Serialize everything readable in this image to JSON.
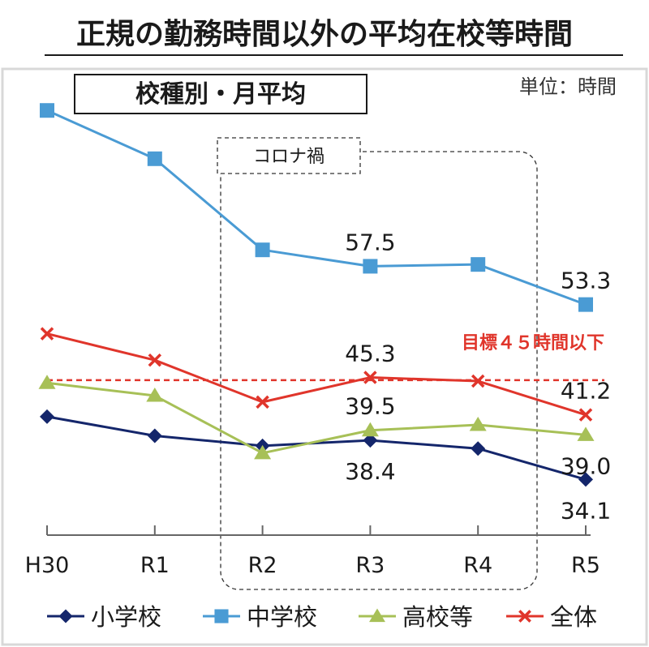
{
  "title": "正規の勤務時間以外の平均在校等時間",
  "subtitle": "校種別・月平均",
  "unit_label": "単位：時間",
  "covid_label": "コロナ禍",
  "target_label": "目標４５時間以下",
  "colors": {
    "title": "#1a1a1a",
    "elementary": "#14266b",
    "junior_high": "#4a9bd4",
    "high_school": "#a7c057",
    "overall": "#e0352b",
    "target": "#e0352b",
    "axis": "#666666",
    "frame": "#d8d8d8",
    "covid_box": "#333333"
  },
  "chart_data": {
    "type": "line",
    "categories": [
      "H30",
      "R1",
      "R2",
      "R3",
      "R4",
      "R5"
    ],
    "ylim": [
      28,
      78
    ],
    "grid": false,
    "legend_position": "bottom",
    "target_value": 45,
    "covid_range": [
      "R2",
      "R4"
    ],
    "series": [
      {
        "key": "elementary",
        "name": "小学校",
        "marker": "diamond",
        "values": [
          41.0,
          38.9,
          37.8,
          38.4,
          37.5,
          34.1
        ]
      },
      {
        "key": "junior_high",
        "name": "中学校",
        "marker": "square",
        "values": [
          74.6,
          69.3,
          59.3,
          57.5,
          57.7,
          53.3
        ]
      },
      {
        "key": "high_school",
        "name": "高校等",
        "marker": "triangle",
        "values": [
          44.7,
          43.3,
          37.0,
          39.5,
          40.1,
          39.0
        ]
      },
      {
        "key": "overall",
        "name": "全体",
        "marker": "x",
        "values": [
          50.1,
          47.2,
          42.6,
          45.3,
          44.9,
          41.2
        ]
      }
    ],
    "data_labels": [
      {
        "series": "junior_high",
        "index": 3,
        "text": "57.5",
        "pos": "above"
      },
      {
        "series": "junior_high",
        "index": 5,
        "text": "53.3",
        "pos": "above"
      },
      {
        "series": "overall",
        "index": 3,
        "text": "45.3",
        "pos": "above"
      },
      {
        "series": "overall",
        "index": 5,
        "text": "41.2",
        "pos": "above"
      },
      {
        "series": "high_school",
        "index": 3,
        "text": "39.5",
        "pos": "above"
      },
      {
        "series": "high_school",
        "index": 5,
        "text": "39.0",
        "pos": "below"
      },
      {
        "series": "elementary",
        "index": 3,
        "text": "38.4",
        "pos": "below"
      },
      {
        "series": "elementary",
        "index": 5,
        "text": "34.1",
        "pos": "below"
      }
    ]
  }
}
